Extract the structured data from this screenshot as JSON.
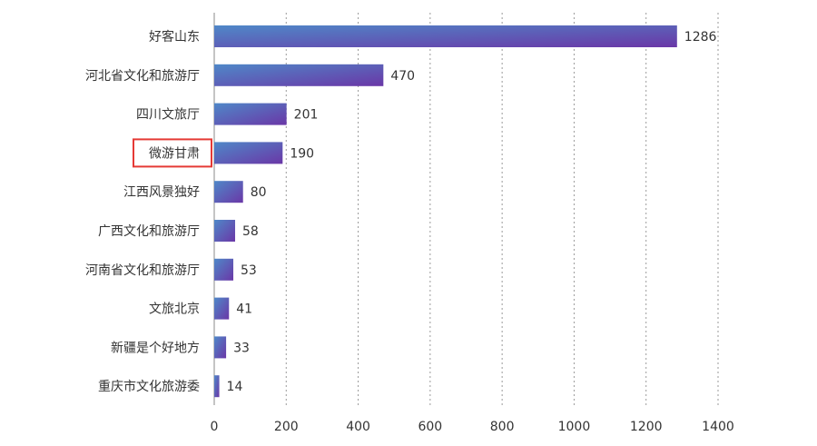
{
  "chart_data": {
    "type": "bar",
    "orientation": "horizontal",
    "categories": [
      "好客山东",
      "河北省文化和旅游厅",
      "四川文旅厅",
      "微游甘肃",
      "江西风景独好",
      "广西文化和旅游厅",
      "河南省文化和旅游厅",
      "文旅北京",
      "新疆是个好地方",
      "重庆市文化旅游委"
    ],
    "values": [
      1286,
      470,
      201,
      190,
      80,
      58,
      53,
      41,
      33,
      14
    ],
    "xticks": [
      0,
      200,
      400,
      600,
      800,
      1000,
      1200,
      1400
    ],
    "xlim": [
      0,
      1400
    ],
    "grid": "vertical-dashed",
    "highlighted_category": "微游甘肃",
    "colors": {
      "bar_start": "#4f88c8",
      "bar_end": "#6a37a7",
      "highlight_box": "#e53935"
    },
    "title": "",
    "xlabel": "",
    "ylabel": ""
  }
}
